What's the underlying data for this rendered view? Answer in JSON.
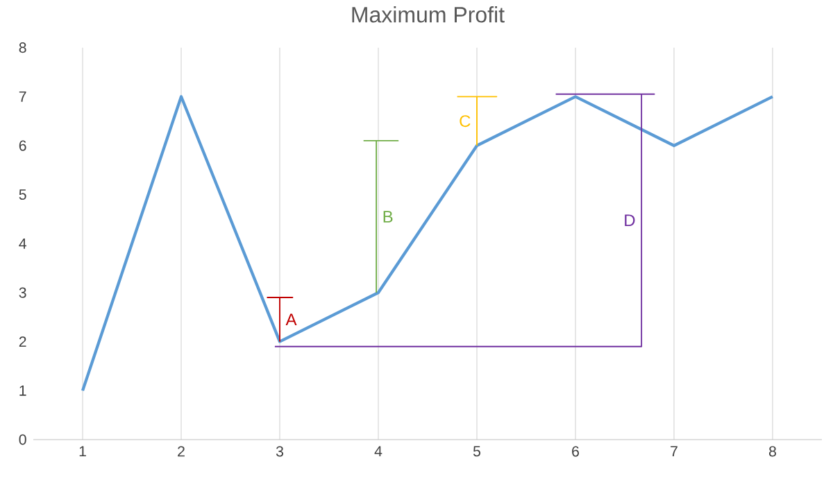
{
  "chart_data": {
    "type": "line",
    "title": "Maximum Profit",
    "xlim": [
      0.5,
      8.5
    ],
    "xticks": [
      1,
      2,
      3,
      4,
      5,
      6,
      7,
      8
    ],
    "ylim": [
      0,
      8
    ],
    "yticks": [
      0,
      1,
      2,
      3,
      4,
      5,
      6,
      7,
      8
    ],
    "grid": "x",
    "marker": "none",
    "line_style": "solid",
    "series": [
      {
        "color": "#5b9bd5",
        "x": [
          1,
          2,
          3,
          4,
          5,
          6,
          7,
          8
        ],
        "values": [
          1,
          7,
          2,
          3,
          6,
          7,
          6,
          7
        ]
      },
      {
        "name": "A",
        "color": "#c00000",
        "x": [
          2.87,
          3.13,
          3,
          3
        ],
        "values": [
          2.9,
          2.9,
          2.9,
          2
        ]
      },
      {
        "name": "B",
        "color": "#70ad47",
        "x": [
          3.85,
          4.2,
          3.98,
          3.98
        ],
        "values": [
          6.1,
          6.1,
          6.1,
          3
        ]
      },
      {
        "name": "C",
        "color": "#ffc000",
        "x": [
          4.8,
          5.2,
          5,
          5
        ],
        "values": [
          7,
          7,
          7,
          6
        ]
      },
      {
        "name": "D",
        "color": "#7030a0",
        "x": [
          5.8,
          6.8,
          6.67,
          6.67,
          2.95
        ],
        "values": [
          7.05,
          7.05,
          7.05,
          1.9,
          1.9
        ]
      }
    ]
  }
}
